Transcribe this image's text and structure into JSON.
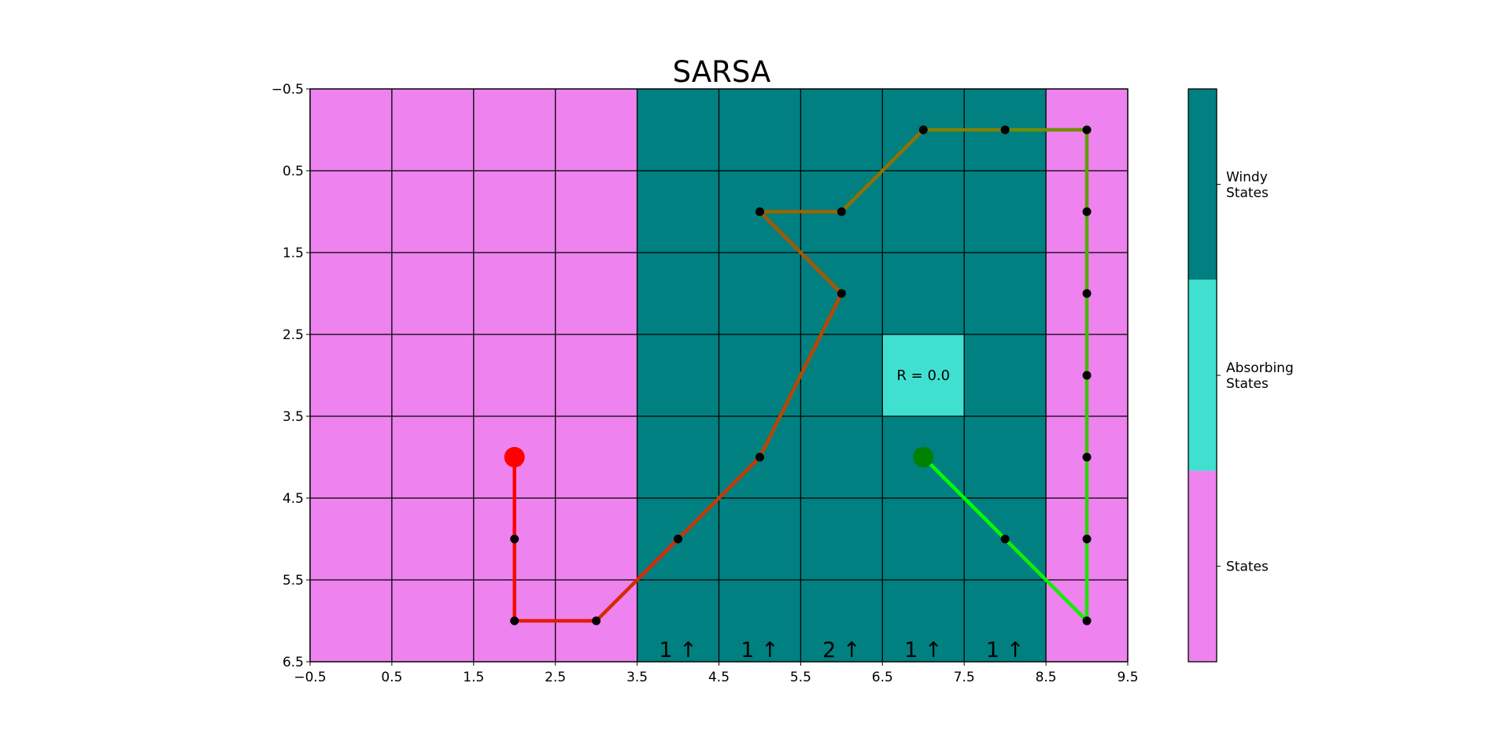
{
  "chart_data": {
    "type": "heatmap",
    "title": "SARSA",
    "xlim": [
      -0.5,
      9.5
    ],
    "ylim": [
      6.5,
      -0.5
    ],
    "y_inverted": true,
    "xticks": [
      -0.5,
      0.5,
      1.5,
      2.5,
      3.5,
      4.5,
      5.5,
      6.5,
      7.5,
      8.5,
      9.5
    ],
    "xtick_labels": [
      "−0.5",
      "0.5",
      "1.5",
      "2.5",
      "3.5",
      "4.5",
      "5.5",
      "6.5",
      "7.5",
      "8.5",
      "9.5"
    ],
    "yticks": [
      -0.5,
      0.5,
      1.5,
      2.5,
      3.5,
      4.5,
      5.5,
      6.5
    ],
    "ytick_labels": [
      "−0.5",
      "0.5",
      "1.5",
      "2.5",
      "3.5",
      "4.5",
      "5.5",
      "6.5"
    ],
    "grid": true,
    "state_colors": {
      "state": "#ee82ee",
      "windy": "#008080",
      "absorbing": "#40e0d0"
    },
    "grid_shape": {
      "columns": 10,
      "rows": 7
    },
    "windy_columns": [
      4,
      5,
      6,
      7,
      8
    ],
    "absorbing_cell": {
      "x": 7,
      "y": 3
    },
    "reward_label": "R = 0.0",
    "wind_labels": [
      {
        "x": 4,
        "text": "1 ↑"
      },
      {
        "x": 5,
        "text": "1 ↑"
      },
      {
        "x": 6,
        "text": "2 ↑"
      },
      {
        "x": 7,
        "text": "1 ↑"
      },
      {
        "x": 8,
        "text": "1 ↑"
      }
    ],
    "trajectory": [
      {
        "x": 2,
        "y": 4
      },
      {
        "x": 2,
        "y": 5
      },
      {
        "x": 2,
        "y": 6
      },
      {
        "x": 3,
        "y": 6
      },
      {
        "x": 4,
        "y": 5
      },
      {
        "x": 5,
        "y": 4
      },
      {
        "x": 6,
        "y": 2
      },
      {
        "x": 5,
        "y": 1
      },
      {
        "x": 6,
        "y": 1
      },
      {
        "x": 7,
        "y": 0
      },
      {
        "x": 8,
        "y": 0
      },
      {
        "x": 9,
        "y": 0
      },
      {
        "x": 9,
        "y": 1
      },
      {
        "x": 9,
        "y": 2
      },
      {
        "x": 9,
        "y": 3
      },
      {
        "x": 9,
        "y": 4
      },
      {
        "x": 9,
        "y": 5
      },
      {
        "x": 9,
        "y": 6
      },
      {
        "x": 8,
        "y": 5
      },
      {
        "x": 7,
        "y": 4
      }
    ],
    "start": {
      "x": 2,
      "y": 4,
      "color": "#ff0000"
    },
    "goal": {
      "x": 7,
      "y": 4,
      "color": "#008000"
    },
    "path_color_start": "#ff0000",
    "path_color_end": "#00ff00",
    "colorbar": {
      "labels": [
        "Windy\nStates",
        "Absorbing\nStates",
        "States"
      ],
      "colors": [
        "#008080",
        "#40e0d0",
        "#ee82ee"
      ]
    }
  }
}
